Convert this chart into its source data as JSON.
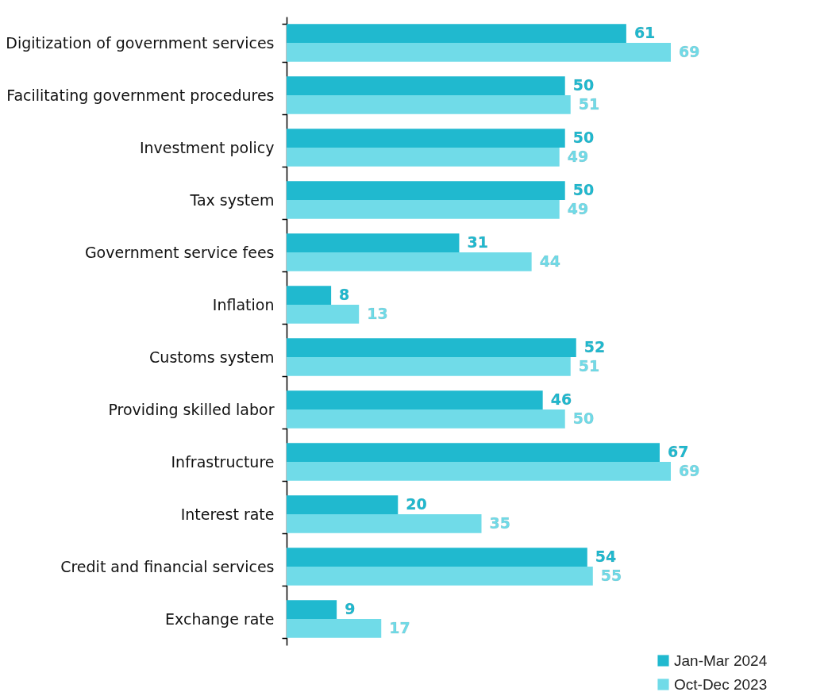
{
  "chart_data": {
    "type": "bar",
    "orientation": "horizontal",
    "data_labels": true,
    "legend": "bottom right",
    "categories": [
      "Digitization of government services",
      "Facilitating government procedures",
      "Investment policy",
      "Tax system",
      "Government service fees",
      "Inflation",
      "Customs system",
      "Providing skilled labor",
      "Infrastructure",
      "Interest rate",
      "Credit and financial services",
      "Exchange rate"
    ],
    "series": [
      {
        "name": "Jan-Mar 2024",
        "color": "#20b9cf",
        "values": [
          61,
          50,
          50,
          50,
          31,
          8,
          52,
          46,
          67,
          20,
          54,
          9
        ]
      },
      {
        "name": "Oct-Dec 2023",
        "color": "#70dbe8",
        "values": [
          69,
          51,
          49,
          49,
          44,
          13,
          51,
          50,
          69,
          35,
          55,
          17
        ]
      }
    ]
  }
}
